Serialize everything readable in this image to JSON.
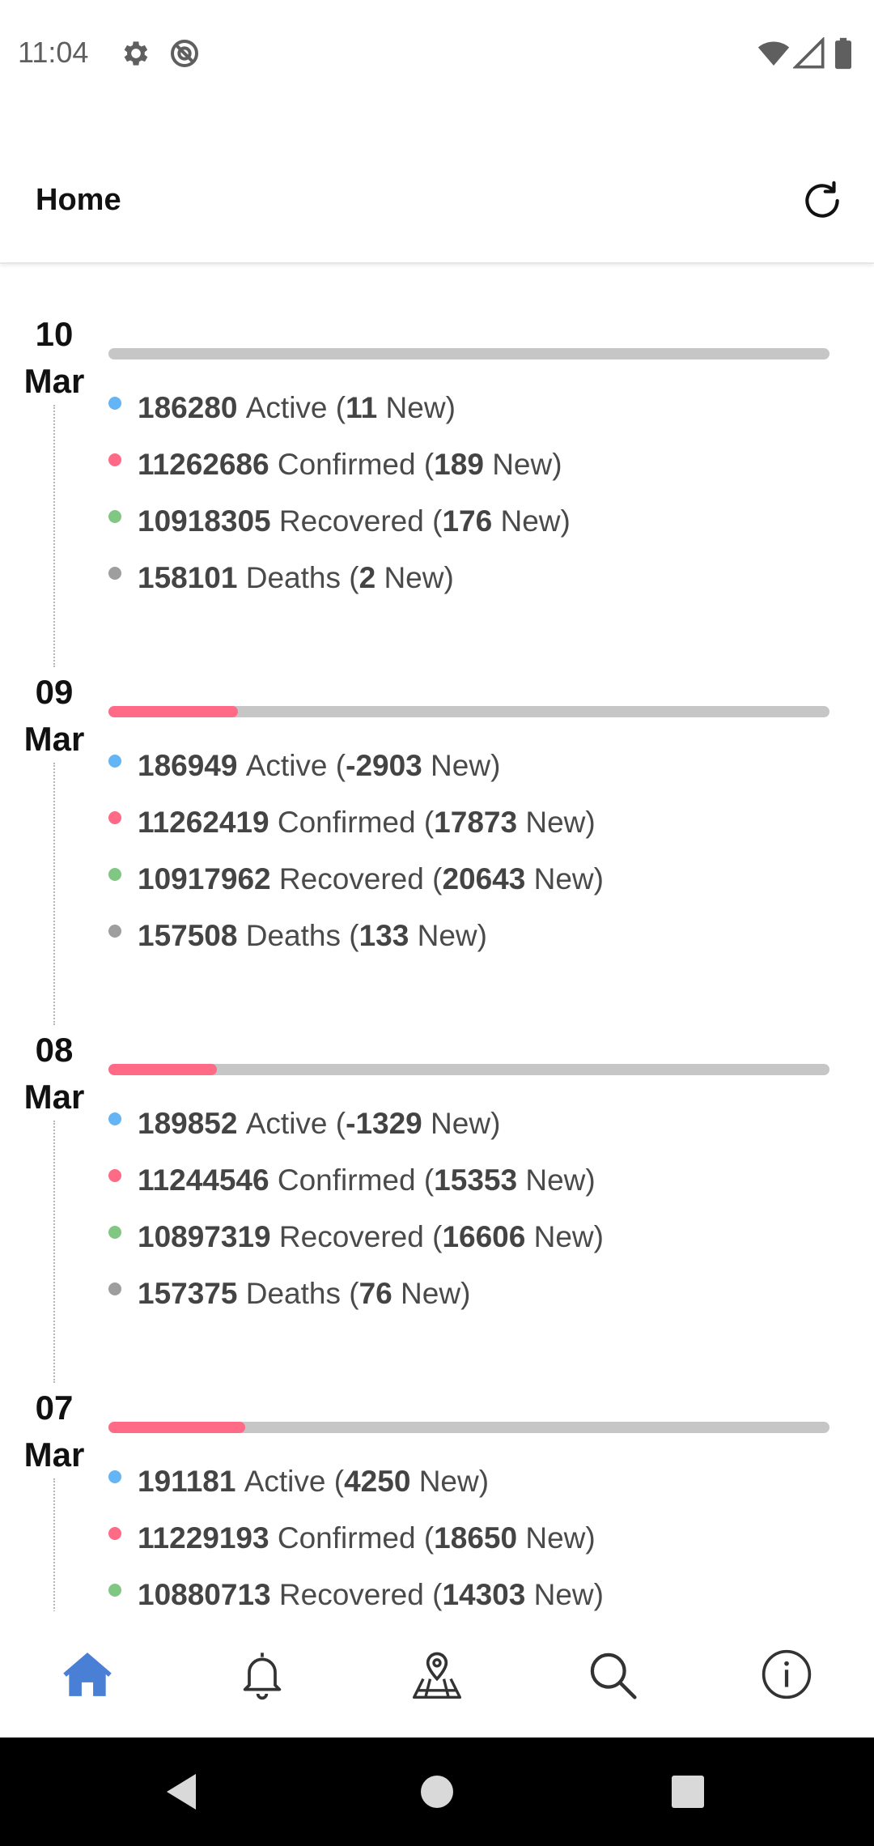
{
  "status_bar": {
    "time": "11:04",
    "icons_left": [
      "gear-icon",
      "no-sim-icon"
    ],
    "icons_right": [
      "wifi-icon",
      "cell-signal-icon",
      "battery-icon"
    ]
  },
  "app_bar": {
    "title": "Home",
    "refresh_icon": "refresh-icon"
  },
  "colors": {
    "active": "#64b5f6",
    "confirmed": "#ff6b86",
    "recovered": "#81c784",
    "deaths": "#9e9e9e",
    "progress_track": "#c6c6c6",
    "progress_fill": "#ff6b86",
    "nav_active": "#4a7fd6"
  },
  "days": [
    {
      "day": "10",
      "month": "Mar",
      "progress": 0.0,
      "stats": [
        {
          "value": "186280",
          "label": "Active",
          "new": "11",
          "new_suffix": "New"
        },
        {
          "value": "11262686",
          "label": "Confirmed",
          "new": "189",
          "new_suffix": "New"
        },
        {
          "value": "10918305",
          "label": "Recovered",
          "new": "176",
          "new_suffix": "New"
        },
        {
          "value": "158101",
          "label": "Deaths",
          "new": "2",
          "new_suffix": "New"
        }
      ]
    },
    {
      "day": "09",
      "month": "Mar",
      "progress": 0.18,
      "stats": [
        {
          "value": "186949",
          "label": "Active",
          "new": "-2903",
          "new_suffix": "New"
        },
        {
          "value": "11262419",
          "label": "Confirmed",
          "new": "17873",
          "new_suffix": "New"
        },
        {
          "value": "10917962",
          "label": "Recovered",
          "new": "20643",
          "new_suffix": "New"
        },
        {
          "value": "157508",
          "label": "Deaths",
          "new": "133",
          "new_suffix": "New"
        }
      ]
    },
    {
      "day": "08",
      "month": "Mar",
      "progress": 0.15,
      "stats": [
        {
          "value": "189852",
          "label": "Active",
          "new": "-1329",
          "new_suffix": "New"
        },
        {
          "value": "11244546",
          "label": "Confirmed",
          "new": "15353",
          "new_suffix": "New"
        },
        {
          "value": "10897319",
          "label": "Recovered",
          "new": "16606",
          "new_suffix": "New"
        },
        {
          "value": "157375",
          "label": "Deaths",
          "new": "76",
          "new_suffix": "New"
        }
      ]
    },
    {
      "day": "07",
      "month": "Mar",
      "progress": 0.19,
      "stats": [
        {
          "value": "191181",
          "label": "Active",
          "new": "4250",
          "new_suffix": "New"
        },
        {
          "value": "11229193",
          "label": "Confirmed",
          "new": "18650",
          "new_suffix": "New"
        },
        {
          "value": "10880713",
          "label": "Recovered",
          "new": "14303",
          "new_suffix": "New"
        }
      ]
    }
  ],
  "bottom_nav": {
    "items": [
      {
        "icon": "home-icon",
        "active": true
      },
      {
        "icon": "bell-icon",
        "active": false
      },
      {
        "icon": "map-pin-icon",
        "active": false
      },
      {
        "icon": "search-icon",
        "active": false
      },
      {
        "icon": "info-icon",
        "active": false
      }
    ]
  },
  "system_nav": {
    "items": [
      "back-icon",
      "home-circle-icon",
      "recents-icon"
    ]
  }
}
